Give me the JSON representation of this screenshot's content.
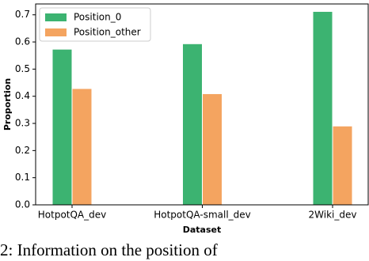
{
  "chart_data": {
    "type": "bar",
    "categories": [
      "HotpotQA_dev",
      "HotpotQA-small_dev",
      "2Wiki_dev"
    ],
    "series": [
      {
        "name": "Position_0",
        "color": "#3cb371",
        "values": [
          0.572,
          0.592,
          0.711
        ]
      },
      {
        "name": "Position_other",
        "color": "#f4a460",
        "values": [
          0.427,
          0.408,
          0.289
        ]
      }
    ],
    "xlabel": "Dataset",
    "ylabel": "Proportion",
    "ylim": [
      0,
      0.74
    ],
    "yticks": [
      {
        "value": 0,
        "label": "0.0"
      },
      0.1,
      0.2,
      0.3,
      0.4,
      0.5,
      0.6,
      0.7
    ],
    "legend": "upper-left"
  },
  "caption": "2: Information on the position of"
}
